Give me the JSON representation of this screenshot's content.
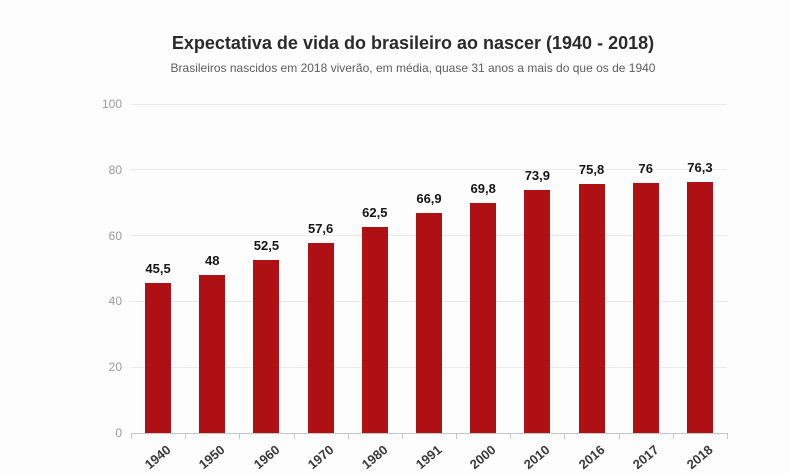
{
  "header": {
    "title": "Expectativa de vida do brasileiro ao nascer (1940 - 2018)",
    "subtitle": "Brasileiros nascidos em 2018 viverão, em média, quase 31 anos a mais do que os de 1940"
  },
  "chart_data": {
    "type": "bar",
    "title": "Expectativa de vida do brasileiro ao nascer (1940 - 2018)",
    "subtitle": "Brasileiros nascidos em 2018 viverão, em média, quase 31 anos a mais do que os de 1940",
    "categories": [
      "1940",
      "1950",
      "1960",
      "1970",
      "1980",
      "1991",
      "2000",
      "2010",
      "2016",
      "2017",
      "2018"
    ],
    "values": [
      45.5,
      48,
      52.5,
      57.6,
      62.5,
      66.9,
      69.8,
      73.9,
      75.8,
      76,
      76.3
    ],
    "value_labels": [
      "45,5",
      "48",
      "52,5",
      "57,6",
      "62,5",
      "66,9",
      "69,8",
      "73,9",
      "75,8",
      "76",
      "76,3"
    ],
    "xlabel": "",
    "ylabel": "",
    "ylim": [
      0,
      100
    ],
    "y_ticks": [
      0,
      20,
      40,
      60,
      80,
      100
    ],
    "grid": true,
    "legend": "none",
    "bar_color": "#ae1014",
    "gridline_color": "#e9e9e9",
    "axis_color": "#c6c6c6",
    "y_tick_label_color": "#9b9b9b"
  }
}
